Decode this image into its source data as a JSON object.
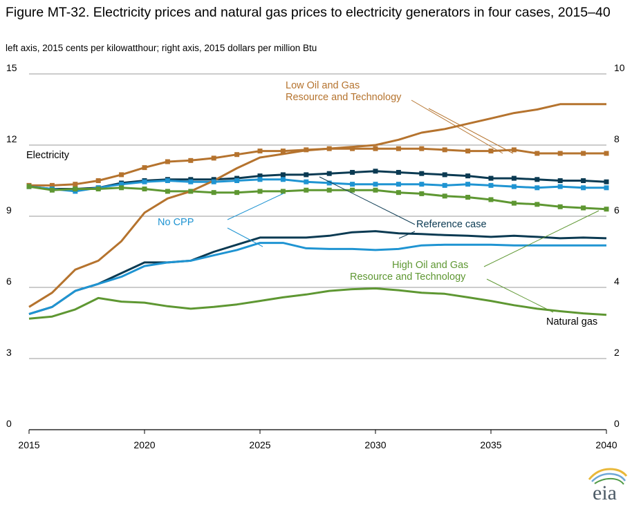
{
  "title": "Figure MT-32. Electricity prices and natural gas prices to electricity generators in four cases, 2015–40",
  "subtitle": "left axis, 2015 cents per kilowatthour; right axis, 2015 dollars per million Btu",
  "chart_data": {
    "type": "line",
    "title": "Figure MT-32. Electricity prices and natural gas prices to electricity generators in four cases, 2015–40",
    "x": [
      2015,
      2016,
      2017,
      2018,
      2019,
      2020,
      2021,
      2022,
      2023,
      2024,
      2025,
      2026,
      2027,
      2028,
      2029,
      2030,
      2031,
      2032,
      2033,
      2034,
      2035,
      2036,
      2037,
      2038,
      2039,
      2040
    ],
    "x_ticks": [
      2015,
      2020,
      2025,
      2030,
      2035,
      2040
    ],
    "left_axis": {
      "label": "left axis, 2015 cents per kilowatthour",
      "range": [
        0,
        15
      ],
      "ticks": [
        0,
        3,
        6,
        9,
        12,
        15
      ]
    },
    "right_axis": {
      "label": "right axis, 2015 dollars per million Btu",
      "range": [
        0,
        10
      ],
      "ticks": [
        0,
        2,
        4,
        6,
        8,
        10
      ]
    },
    "grid": "horizontal",
    "series": [
      {
        "group": "Electricity",
        "case": "Low Oil and Gas Resource and Technology",
        "axis": "left",
        "color": "#b5732e",
        "marker": "square",
        "values": [
          10.3,
          10.3,
          10.35,
          10.5,
          10.75,
          11.05,
          11.3,
          11.35,
          11.45,
          11.6,
          11.75,
          11.75,
          11.8,
          11.85,
          11.85,
          11.85,
          11.85,
          11.85,
          11.8,
          11.75,
          11.75,
          11.8,
          11.65,
          11.65,
          11.65,
          11.65
        ]
      },
      {
        "group": "Electricity",
        "case": "Reference case",
        "axis": "left",
        "color": "#0b3a52",
        "marker": "square",
        "values": [
          10.25,
          10.15,
          10.15,
          10.2,
          10.4,
          10.5,
          10.55,
          10.55,
          10.55,
          10.6,
          10.7,
          10.75,
          10.75,
          10.8,
          10.85,
          10.9,
          10.85,
          10.8,
          10.75,
          10.7,
          10.6,
          10.6,
          10.55,
          10.5,
          10.5,
          10.45
        ]
      },
      {
        "group": "Electricity",
        "case": "No CPP",
        "axis": "left",
        "color": "#1f94d2",
        "marker": "square",
        "values": [
          10.25,
          10.15,
          10.05,
          10.2,
          10.35,
          10.45,
          10.5,
          10.45,
          10.45,
          10.5,
          10.55,
          10.55,
          10.45,
          10.4,
          10.35,
          10.35,
          10.35,
          10.35,
          10.3,
          10.35,
          10.3,
          10.25,
          10.2,
          10.25,
          10.2,
          10.2
        ]
      },
      {
        "group": "Electricity",
        "case": "High Oil and Gas Resource and Technology",
        "axis": "left",
        "color": "#5e9732",
        "marker": "square",
        "values": [
          10.25,
          10.1,
          10.15,
          10.15,
          10.2,
          10.15,
          10.05,
          10.05,
          10.0,
          10.0,
          10.05,
          10.05,
          10.1,
          10.1,
          10.1,
          10.1,
          10.0,
          9.95,
          9.85,
          9.8,
          9.7,
          9.55,
          9.5,
          9.4,
          9.35,
          9.3
        ]
      },
      {
        "group": "Natural gas",
        "case": "Low Oil and Gas Resource and Technology",
        "axis": "right",
        "color": "#b5732e",
        "values": [
          3.45,
          3.85,
          4.5,
          4.75,
          5.3,
          6.1,
          6.5,
          6.7,
          7.0,
          7.35,
          7.65,
          7.75,
          7.85,
          7.9,
          7.95,
          8.0,
          8.15,
          8.35,
          8.45,
          8.6,
          8.75,
          8.9,
          9.0,
          9.15,
          9.15,
          9.15
        ]
      },
      {
        "group": "Natural gas",
        "case": "Reference case",
        "axis": "right",
        "color": "#0b3a52",
        "values": [
          3.25,
          3.45,
          3.9,
          4.1,
          4.4,
          4.7,
          4.7,
          4.75,
          5.0,
          5.2,
          5.4,
          5.4,
          5.4,
          5.45,
          5.55,
          5.58,
          5.52,
          5.5,
          5.47,
          5.45,
          5.42,
          5.45,
          5.42,
          5.38,
          5.4,
          5.38
        ]
      },
      {
        "group": "Natural gas",
        "case": "No CPP",
        "axis": "right",
        "color": "#1f94d2",
        "values": [
          3.25,
          3.45,
          3.9,
          4.1,
          4.3,
          4.6,
          4.7,
          4.75,
          4.9,
          5.05,
          5.25,
          5.25,
          5.1,
          5.08,
          5.08,
          5.05,
          5.08,
          5.18,
          5.2,
          5.2,
          5.2,
          5.18,
          5.18,
          5.18,
          5.18,
          5.18
        ]
      },
      {
        "group": "Natural gas",
        "case": "High Oil and Gas Resource and Technology",
        "axis": "right",
        "color": "#5e9732",
        "values": [
          3.12,
          3.18,
          3.38,
          3.7,
          3.6,
          3.57,
          3.47,
          3.4,
          3.45,
          3.52,
          3.62,
          3.72,
          3.8,
          3.9,
          3.95,
          3.97,
          3.92,
          3.85,
          3.82,
          3.72,
          3.62,
          3.5,
          3.4,
          3.33,
          3.27,
          3.23
        ]
      }
    ],
    "annotations": [
      "Low Oil and Gas",
      "Resource and Technology",
      "Electricity",
      "No CPP",
      "Reference case",
      "High Oil and Gas",
      "Resource and Technology",
      "Natural gas"
    ]
  },
  "labels": {
    "low_line1": "Low Oil and Gas",
    "low_line2": "Resource and Technology",
    "electricity": "Electricity",
    "nocpp": "No CPP",
    "reference": "Reference case",
    "high_line1": "High Oil and Gas",
    "high_line2": "Resource and Technology",
    "natural_gas": "Natural gas",
    "logo_text": "eia"
  },
  "colors": {
    "low": "#b5732e",
    "reference": "#0b3a52",
    "nocpp": "#1f94d2",
    "high": "#5e9732",
    "grid": "#9a9a9a",
    "axis": "#000000"
  }
}
